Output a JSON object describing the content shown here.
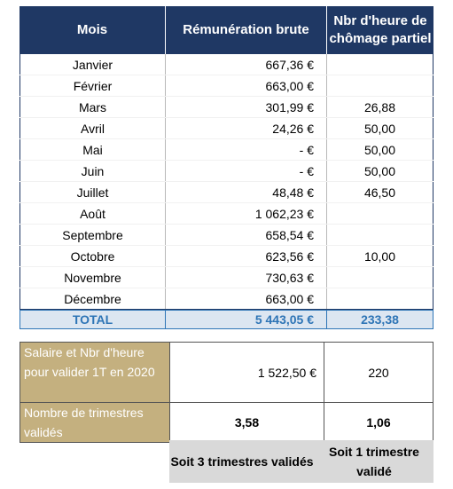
{
  "table": {
    "headers": {
      "mois": "Mois",
      "remuneration": "Rémunération brute",
      "chomage": "Nbr d'heure de chômage partiel"
    },
    "rows": [
      {
        "mois": "Janvier",
        "remuneration": "667,36 €",
        "chomage": ""
      },
      {
        "mois": "Février",
        "remuneration": "663,00 €",
        "chomage": ""
      },
      {
        "mois": "Mars",
        "remuneration": "301,99 €",
        "chomage": "26,88"
      },
      {
        "mois": "Avril",
        "remuneration": "24,26 €",
        "chomage": "50,00"
      },
      {
        "mois": "Mai",
        "remuneration": "-     €",
        "chomage": "50,00"
      },
      {
        "mois": "Juin",
        "remuneration": "-     €",
        "chomage": "50,00"
      },
      {
        "mois": "Juillet",
        "remuneration": "48,48 €",
        "chomage": "46,50"
      },
      {
        "mois": "Août",
        "remuneration": "1 062,23 €",
        "chomage": ""
      },
      {
        "mois": "Septembre",
        "remuneration": "658,54 €",
        "chomage": ""
      },
      {
        "mois": "Octobre",
        "remuneration": "623,56 €",
        "chomage": "10,00"
      },
      {
        "mois": "Novembre",
        "remuneration": "730,63 €",
        "chomage": ""
      },
      {
        "mois": "Décembre",
        "remuneration": "663,00 €",
        "chomage": ""
      }
    ],
    "total": {
      "label": "TOTAL",
      "remuneration": "5 443,05 €",
      "chomage": "233,38"
    }
  },
  "summary": {
    "row1": {
      "label": "Salaire et Nbr d'heure pour valider 1T en 2020",
      "remuneration": "1 522,50 €",
      "chomage": "220"
    },
    "row2": {
      "label": "Nombre de trimestres validés",
      "remuneration": "3,58",
      "chomage": "1,06"
    },
    "footer": {
      "remuneration": "Soit 3 trimestres validés",
      "chomage": "Soit 1 trimestre validé"
    }
  },
  "colors": {
    "header_bg": "#1f3864",
    "total_bg": "#dce6f1",
    "total_text": "#2e75b6",
    "summary_label_bg": "#c4b07f",
    "footer_bg": "#d9d9d9"
  }
}
